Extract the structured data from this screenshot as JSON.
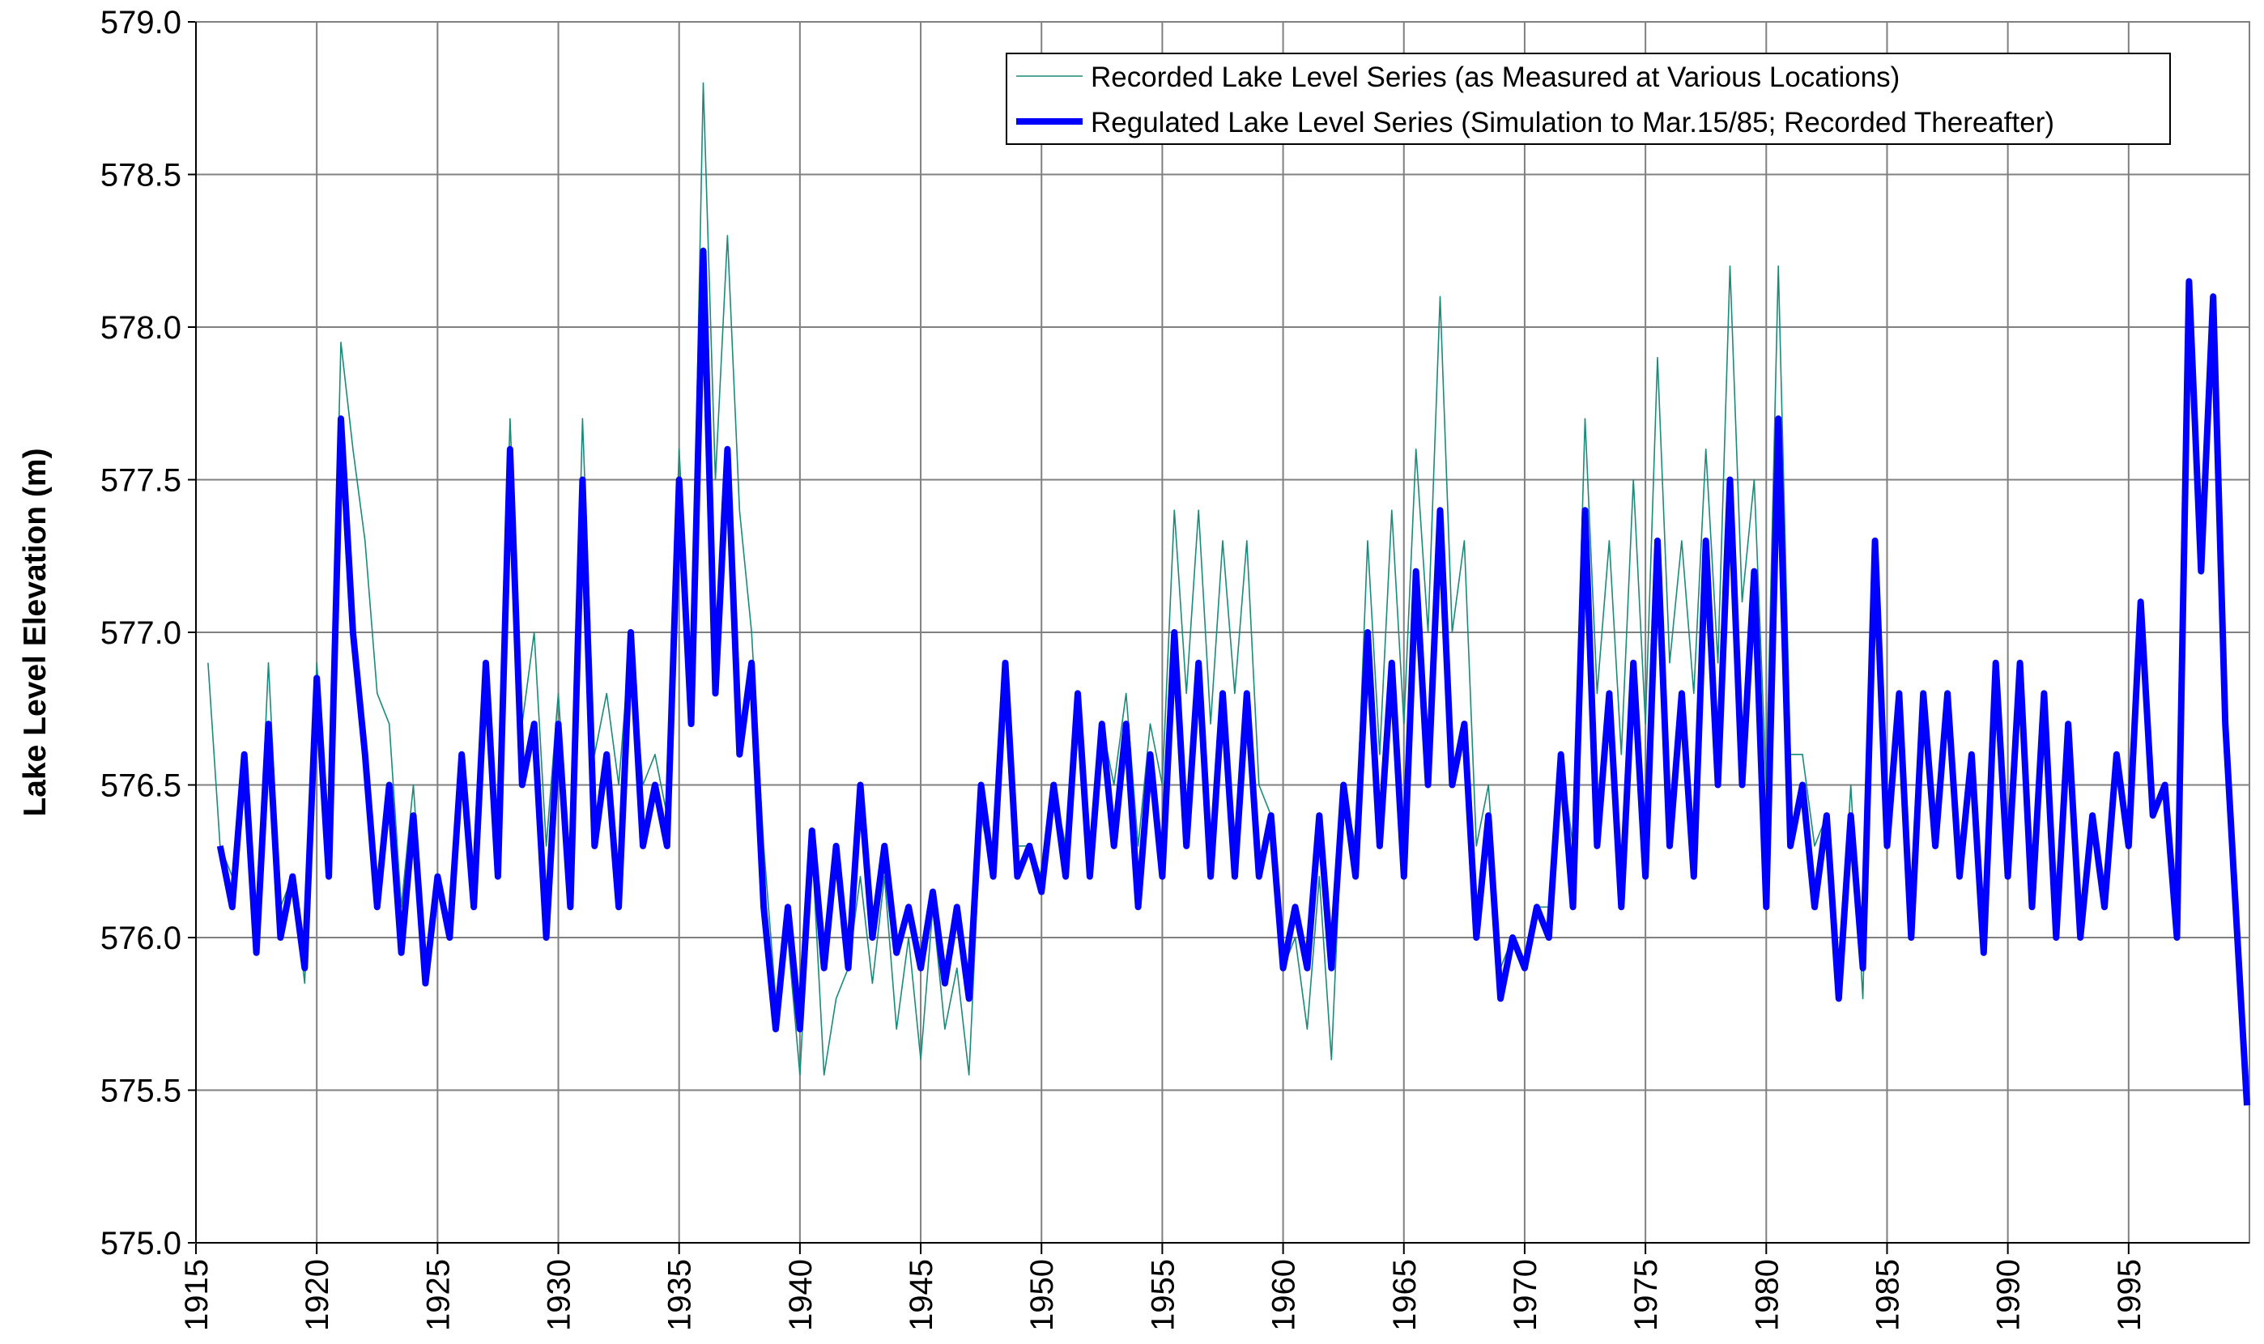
{
  "chart_data": {
    "type": "line",
    "ylabel": "Lake Level Elevation (m)",
    "xlim": [
      1915,
      2000
    ],
    "ylim": [
      575,
      579
    ],
    "xticks": [
      1915,
      1920,
      1925,
      1930,
      1935,
      1940,
      1945,
      1950,
      1955,
      1960,
      1965,
      1970,
      1975,
      1980,
      1985,
      1990,
      1995
    ],
    "yticks": [
      {
        "value": 575,
        "label": "575.0"
      },
      575.5,
      {
        "value": 576,
        "label": "576.0"
      },
      576.5,
      {
        "value": 577,
        "label": "577.0"
      },
      577.5,
      {
        "value": 578,
        "label": "578.0"
      },
      578.5,
      {
        "value": 579,
        "label": "579.0"
      }
    ],
    "grid": true,
    "legend": "upper right",
    "x": [
      1915.5,
      1916,
      1916.5,
      1917,
      1917.5,
      1918,
      1918.5,
      1919,
      1919.5,
      1920,
      1920.5,
      1921,
      1921.5,
      1922,
      1922.5,
      1923,
      1923.5,
      1924,
      1924.5,
      1925,
      1925.5,
      1926,
      1926.5,
      1927,
      1927.5,
      1928,
      1928.5,
      1929,
      1929.5,
      1930,
      1930.5,
      1931,
      1931.5,
      1932,
      1932.5,
      1933,
      1933.5,
      1934,
      1934.5,
      1935,
      1935.5,
      1936,
      1936.5,
      1937,
      1937.5,
      1938,
      1938.5,
      1939,
      1939.5,
      1940,
      1940.5,
      1941,
      1941.5,
      1942,
      1942.5,
      1943,
      1943.5,
      1944,
      1944.5,
      1945,
      1945.5,
      1946,
      1946.5,
      1947,
      1947.5,
      1948,
      1948.5,
      1949,
      1949.5,
      1950,
      1950.5,
      1951,
      1951.5,
      1952,
      1952.5,
      1953,
      1953.5,
      1954,
      1954.5,
      1955,
      1955.5,
      1956,
      1956.5,
      1957,
      1957.5,
      1958,
      1958.5,
      1959,
      1959.5,
      1960,
      1960.5,
      1961,
      1961.5,
      1962,
      1962.5,
      1963,
      1963.5,
      1964,
      1964.5,
      1965,
      1965.5,
      1966,
      1966.5,
      1967,
      1967.5,
      1968,
      1968.5,
      1969,
      1969.5,
      1970,
      1970.5,
      1971,
      1971.5,
      1972,
      1972.5,
      1973,
      1973.5,
      1974,
      1974.5,
      1975,
      1975.5,
      1976,
      1976.5,
      1977,
      1977.5,
      1978,
      1978.5,
      1979,
      1979.5,
      1980,
      1980.5,
      1981,
      1981.5,
      1982,
      1982.5,
      1983,
      1983.5,
      1984,
      1984.5,
      1985,
      1985.5,
      1986,
      1986.5,
      1987,
      1987.5,
      1988,
      1988.5,
      1989,
      1989.5,
      1990,
      1990.5,
      1991,
      1991.5,
      1992,
      1992.5,
      1993,
      1993.5,
      1994,
      1994.5,
      1995,
      1995.5,
      1996,
      1996.5,
      1997,
      1997.5,
      1998,
      1998.5,
      1999,
      1999.5,
      1999.9
    ],
    "series": [
      {
        "name": "Recorded Lake Level Series (as Measured at Various Locations)",
        "color": "#1a8a7a",
        "values": [
          576.9,
          576.3,
          576.2,
          576.6,
          576.0,
          576.9,
          576.1,
          576.2,
          575.85,
          576.9,
          576.3,
          577.95,
          577.6,
          577.3,
          576.8,
          576.7,
          576.1,
          576.5,
          575.9,
          576.2,
          576.0,
          576.6,
          576.2,
          576.9,
          576.3,
          577.7,
          576.7,
          577.0,
          576.3,
          576.8,
          576.2,
          577.7,
          576.6,
          576.8,
          576.5,
          577.0,
          576.5,
          576.6,
          576.4,
          577.6,
          576.8,
          578.8,
          577.5,
          578.3,
          577.4,
          577.0,
          576.3,
          575.8,
          576.0,
          575.55,
          576.3,
          575.55,
          575.8,
          575.9,
          576.2,
          575.85,
          576.2,
          575.7,
          576.0,
          575.6,
          576.1,
          575.7,
          575.9,
          575.55,
          576.4,
          576.2,
          576.8,
          576.3,
          576.3,
          576.2,
          576.5,
          576.3,
          576.8,
          576.3,
          576.7,
          576.5,
          576.8,
          576.3,
          576.7,
          576.5,
          577.4,
          576.8,
          577.4,
          576.7,
          577.3,
          576.8,
          577.3,
          576.5,
          576.4,
          575.9,
          576.0,
          575.7,
          576.2,
          575.6,
          576.5,
          576.3,
          577.3,
          576.6,
          577.4,
          576.7,
          577.6,
          577.0,
          578.1,
          577.0,
          577.3,
          576.3,
          576.5,
          575.9,
          576.0,
          575.9,
          576.1,
          576.1,
          576.6,
          576.3,
          577.7,
          576.8,
          577.3,
          576.6,
          577.5,
          576.7,
          577.9,
          576.9,
          577.3,
          576.8,
          577.6,
          576.9,
          578.2,
          577.1,
          577.5,
          576.5,
          578.2,
          576.6,
          576.6,
          576.3,
          576.4,
          575.8,
          576.5,
          575.8,
          577.3,
          null,
          null,
          null,
          null,
          null,
          null,
          null,
          null,
          null,
          null,
          null,
          null,
          null,
          null,
          null,
          null,
          null,
          null,
          null,
          null,
          null,
          null,
          null,
          null,
          null,
          null,
          null,
          null,
          null,
          null,
          null
        ]
      },
      {
        "name": "Regulated Lake Level Series (Simulation to Mar.15/85; Recorded Thereafter)",
        "color": "#0000ff",
        "values": [
          null,
          576.3,
          576.1,
          576.6,
          575.95,
          576.7,
          576.0,
          576.2,
          575.9,
          576.85,
          576.2,
          577.7,
          577.0,
          576.6,
          576.1,
          576.5,
          575.95,
          576.4,
          575.85,
          576.2,
          576.0,
          576.6,
          576.1,
          576.9,
          576.2,
          577.6,
          576.5,
          576.7,
          576.0,
          576.7,
          576.1,
          577.5,
          576.3,
          576.6,
          576.1,
          577.0,
          576.3,
          576.5,
          576.3,
          577.5,
          576.7,
          578.25,
          576.8,
          577.6,
          576.6,
          576.9,
          576.1,
          575.7,
          576.1,
          575.7,
          576.35,
          575.9,
          576.3,
          575.9,
          576.5,
          576.0,
          576.3,
          575.95,
          576.1,
          575.9,
          576.15,
          575.85,
          576.1,
          575.8,
          576.5,
          576.2,
          576.9,
          576.2,
          576.3,
          576.15,
          576.5,
          576.2,
          576.8,
          576.2,
          576.7,
          576.3,
          576.7,
          576.1,
          576.6,
          576.2,
          577.0,
          576.3,
          576.9,
          576.2,
          576.8,
          576.2,
          576.8,
          576.2,
          576.4,
          575.9,
          576.1,
          575.9,
          576.4,
          575.9,
          576.5,
          576.2,
          577.0,
          576.3,
          576.9,
          576.2,
          577.2,
          576.5,
          577.4,
          576.5,
          576.7,
          576.0,
          576.4,
          575.8,
          576.0,
          575.9,
          576.1,
          576.0,
          576.6,
          576.1,
          577.4,
          576.3,
          576.8,
          576.1,
          576.9,
          576.2,
          577.3,
          576.3,
          576.8,
          576.2,
          577.3,
          576.5,
          577.5,
          576.5,
          577.2,
          576.1,
          577.7,
          576.3,
          576.5,
          576.1,
          576.4,
          575.8,
          576.4,
          575.9,
          577.3,
          576.3,
          576.8,
          576.0,
          576.8,
          576.3,
          576.8,
          576.2,
          576.6,
          575.95,
          576.9,
          576.2,
          576.9,
          576.1,
          576.8,
          576.0,
          576.7,
          576.0,
          576.4,
          576.1,
          576.6,
          576.3,
          577.1,
          576.4,
          576.5,
          576.0,
          578.15,
          577.2,
          578.1,
          576.7,
          576.0,
          575.45
        ]
      }
    ]
  }
}
